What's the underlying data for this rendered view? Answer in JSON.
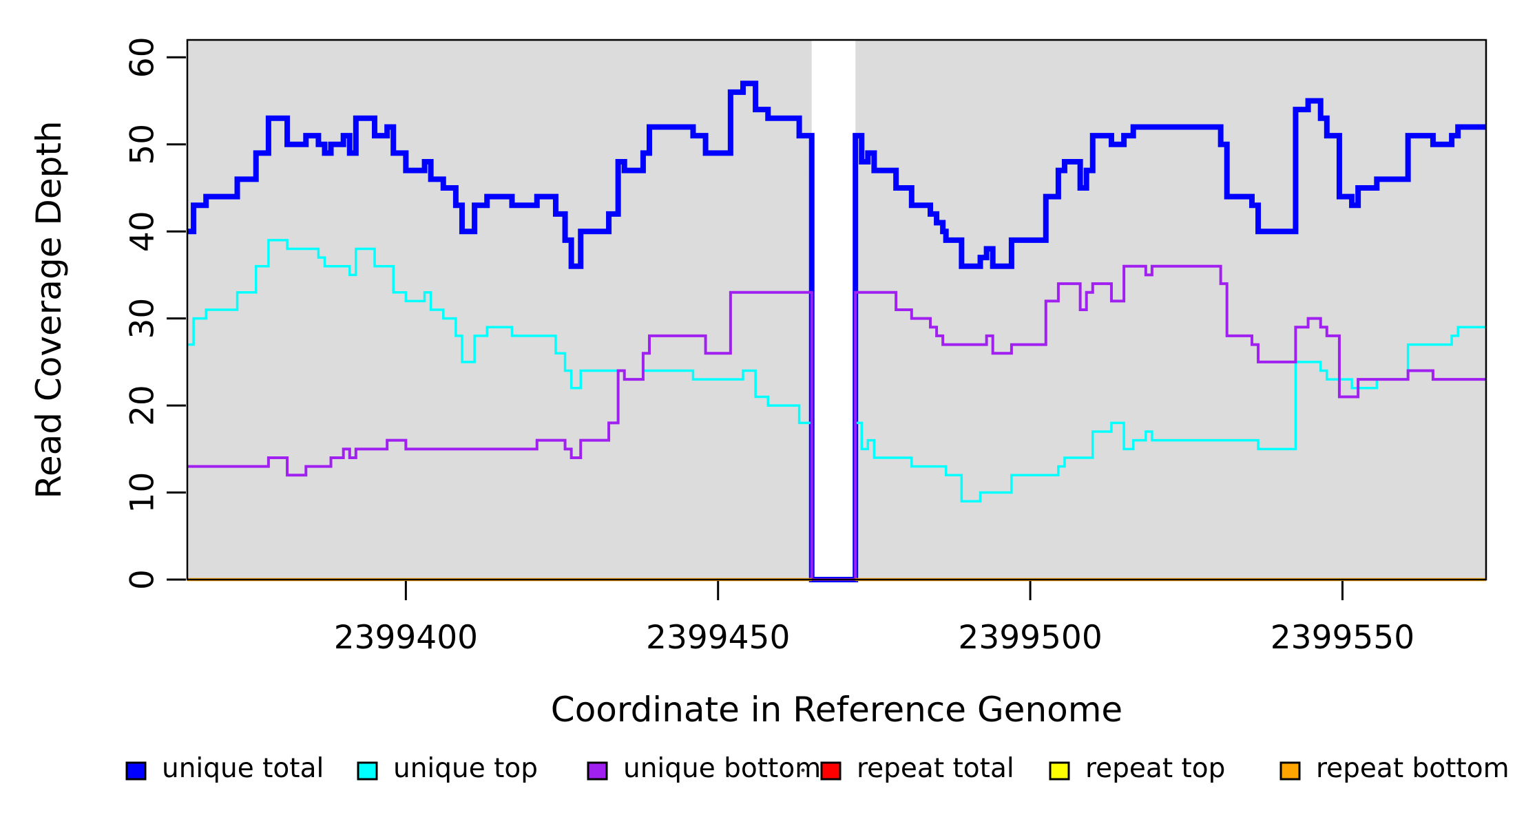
{
  "chart_data": {
    "type": "line",
    "subtype": "step-coverage-plot",
    "xlabel": "Coordinate in Reference Genome",
    "ylabel": "Read Coverage Depth",
    "x_start": 2399365,
    "x_end": 2399573,
    "xlim": [
      2399365,
      2399573
    ],
    "ylim": [
      0,
      62
    ],
    "x_ticks": [
      2399400,
      2399450,
      2399500,
      2399550
    ],
    "y_ticks": [
      0,
      10,
      20,
      30,
      40,
      50,
      60
    ],
    "grid": false,
    "panel_background": "#dcdcdc",
    "gap_region": {
      "from": 2399465,
      "to": 2399472,
      "note": "white band, unique coverage drops to 0, repeat lines absent"
    },
    "legend_position": "bottom",
    "series": [
      {
        "name": "unique total",
        "color": "#0000ff",
        "line_width": 8,
        "offsets_from": 2399365,
        "steps": [
          [
            0,
            40
          ],
          [
            1,
            43
          ],
          [
            3,
            44
          ],
          [
            8,
            46
          ],
          [
            11,
            49
          ],
          [
            13,
            53
          ],
          [
            16,
            50
          ],
          [
            19,
            51
          ],
          [
            21,
            50
          ],
          [
            22,
            49
          ],
          [
            23,
            50
          ],
          [
            25,
            51
          ],
          [
            26,
            49
          ],
          [
            27,
            53
          ],
          [
            30,
            51
          ],
          [
            32,
            52
          ],
          [
            33,
            49
          ],
          [
            35,
            47
          ],
          [
            38,
            48
          ],
          [
            39,
            46
          ],
          [
            41,
            45
          ],
          [
            43,
            43
          ],
          [
            44,
            40
          ],
          [
            46,
            43
          ],
          [
            48,
            44
          ],
          [
            52,
            43
          ],
          [
            56,
            44
          ],
          [
            59,
            42
          ],
          [
            60.5,
            39
          ],
          [
            61.5,
            36
          ],
          [
            63,
            40
          ],
          [
            67.5,
            42
          ],
          [
            69,
            48
          ],
          [
            70,
            47
          ],
          [
            73,
            49
          ],
          [
            74,
            52
          ],
          [
            81,
            51
          ],
          [
            83,
            49
          ],
          [
            87,
            56
          ],
          [
            89,
            57
          ],
          [
            91,
            54
          ],
          [
            93,
            53
          ],
          [
            98,
            51
          ],
          [
            100,
            0
          ],
          [
            107,
            51
          ],
          [
            108,
            48
          ],
          [
            109,
            49
          ],
          [
            110,
            47
          ],
          [
            113.5,
            45
          ],
          [
            116,
            43
          ],
          [
            119,
            42
          ],
          [
            120,
            41
          ],
          [
            121,
            40
          ],
          [
            121.5,
            39
          ],
          [
            124,
            36
          ],
          [
            127,
            37
          ],
          [
            128,
            38
          ],
          [
            129,
            36
          ],
          [
            132,
            39
          ],
          [
            137.5,
            44
          ],
          [
            139.5,
            47
          ],
          [
            140.5,
            48
          ],
          [
            143,
            45
          ],
          [
            144,
            47
          ],
          [
            145,
            51
          ],
          [
            148,
            50
          ],
          [
            150,
            51
          ],
          [
            151.5,
            52
          ],
          [
            165.5,
            50
          ],
          [
            166.5,
            44
          ],
          [
            170.5,
            43
          ],
          [
            171.5,
            40
          ],
          [
            177.5,
            54
          ],
          [
            179.5,
            55
          ],
          [
            181.5,
            53
          ],
          [
            182.5,
            51
          ],
          [
            184.5,
            44
          ],
          [
            186.5,
            43
          ],
          [
            187.5,
            45
          ],
          [
            190.5,
            46
          ],
          [
            195.5,
            51
          ],
          [
            199.5,
            50
          ],
          [
            202.5,
            51
          ],
          [
            203.5,
            52
          ],
          [
            208,
            52
          ]
        ]
      },
      {
        "name": "unique top",
        "color": "#00ffff",
        "line_width": 3.5,
        "offsets_from": 2399365,
        "steps": [
          [
            0,
            27
          ],
          [
            1,
            30
          ],
          [
            3,
            31
          ],
          [
            8,
            33
          ],
          [
            11,
            36
          ],
          [
            13,
            39
          ],
          [
            16,
            38
          ],
          [
            21,
            37
          ],
          [
            22,
            36
          ],
          [
            26,
            35
          ],
          [
            27,
            38
          ],
          [
            30,
            36
          ],
          [
            33,
            33
          ],
          [
            35,
            32
          ],
          [
            38,
            33
          ],
          [
            39,
            31
          ],
          [
            41,
            30
          ],
          [
            43,
            28
          ],
          [
            44,
            25
          ],
          [
            46,
            28
          ],
          [
            48,
            29
          ],
          [
            52,
            28
          ],
          [
            59,
            26
          ],
          [
            60.5,
            24
          ],
          [
            61.5,
            22
          ],
          [
            63,
            24
          ],
          [
            70,
            23
          ],
          [
            73,
            24
          ],
          [
            81,
            23
          ],
          [
            89,
            24
          ],
          [
            91,
            21
          ],
          [
            93,
            20
          ],
          [
            98,
            18
          ],
          [
            100,
            0
          ],
          [
            107,
            18
          ],
          [
            108,
            15
          ],
          [
            109,
            16
          ],
          [
            110,
            14
          ],
          [
            116,
            13
          ],
          [
            121.5,
            12
          ],
          [
            124,
            9
          ],
          [
            127,
            10
          ],
          [
            132,
            12
          ],
          [
            139.5,
            13
          ],
          [
            140.5,
            14
          ],
          [
            145,
            17
          ],
          [
            148,
            18
          ],
          [
            150,
            15
          ],
          [
            151.5,
            16
          ],
          [
            153.5,
            17
          ],
          [
            154.5,
            16
          ],
          [
            171.5,
            15
          ],
          [
            177.5,
            25
          ],
          [
            181.5,
            24
          ],
          [
            182.5,
            23
          ],
          [
            186.5,
            22
          ],
          [
            190.5,
            23
          ],
          [
            195.5,
            27
          ],
          [
            202.5,
            28
          ],
          [
            203.5,
            29
          ],
          [
            208,
            29
          ]
        ]
      },
      {
        "name": "unique bottom",
        "color": "#a020f0",
        "line_width": 4,
        "offsets_from": 2399365,
        "steps": [
          [
            0,
            13
          ],
          [
            13,
            14
          ],
          [
            16,
            12
          ],
          [
            19,
            13
          ],
          [
            23,
            14
          ],
          [
            25,
            15
          ],
          [
            26,
            14
          ],
          [
            27,
            15
          ],
          [
            32,
            16
          ],
          [
            35,
            15
          ],
          [
            56,
            16
          ],
          [
            60.5,
            15
          ],
          [
            61.5,
            14
          ],
          [
            63,
            16
          ],
          [
            67.5,
            18
          ],
          [
            69,
            24
          ],
          [
            70,
            23
          ],
          [
            73,
            26
          ],
          [
            74,
            28
          ],
          [
            83,
            26
          ],
          [
            87,
            33
          ],
          [
            100,
            0
          ],
          [
            107,
            33
          ],
          [
            113.5,
            31
          ],
          [
            116,
            30
          ],
          [
            119,
            29
          ],
          [
            120,
            28
          ],
          [
            121,
            27
          ],
          [
            128,
            28
          ],
          [
            129,
            26
          ],
          [
            132,
            27
          ],
          [
            137.5,
            32
          ],
          [
            139.5,
            34
          ],
          [
            143,
            31
          ],
          [
            144,
            33
          ],
          [
            145,
            34
          ],
          [
            148,
            32
          ],
          [
            150,
            36
          ],
          [
            153.5,
            35
          ],
          [
            154.5,
            36
          ],
          [
            165.5,
            34
          ],
          [
            166.5,
            28
          ],
          [
            170.5,
            27
          ],
          [
            171.5,
            25
          ],
          [
            177.5,
            29
          ],
          [
            179.5,
            30
          ],
          [
            181.5,
            29
          ],
          [
            182.5,
            28
          ],
          [
            184.5,
            21
          ],
          [
            187.5,
            23
          ],
          [
            195.5,
            24
          ],
          [
            199.5,
            23
          ],
          [
            208,
            23
          ]
        ]
      },
      {
        "name": "repeat total",
        "color": "#ff0000",
        "line_width": 4,
        "offsets_from": 2399365,
        "steps": [
          [
            0,
            0
          ],
          [
            208,
            0
          ]
        ],
        "skip_gap": true
      },
      {
        "name": "repeat top",
        "color": "#ffff00",
        "line_width": 4,
        "offsets_from": 2399365,
        "steps": [
          [
            0,
            0
          ],
          [
            208,
            0
          ]
        ],
        "skip_gap": true
      },
      {
        "name": "repeat bottom",
        "color": "#ffa500",
        "line_width": 4.5,
        "offsets_from": 2399365,
        "steps": [
          [
            0,
            0
          ],
          [
            208,
            0
          ]
        ],
        "skip_gap": true
      }
    ],
    "legend": [
      {
        "label": "unique total",
        "color": "#0000ff"
      },
      {
        "label": "unique top",
        "color": "#00ffff"
      },
      {
        "label": "unique bottom",
        "color": "#a020f0"
      },
      {
        "label": "repeat total",
        "color": "#ff0000"
      },
      {
        "label": "repeat top",
        "color": "#ffff00"
      },
      {
        "label": "repeat bottom",
        "color": "#ffa500"
      }
    ]
  }
}
